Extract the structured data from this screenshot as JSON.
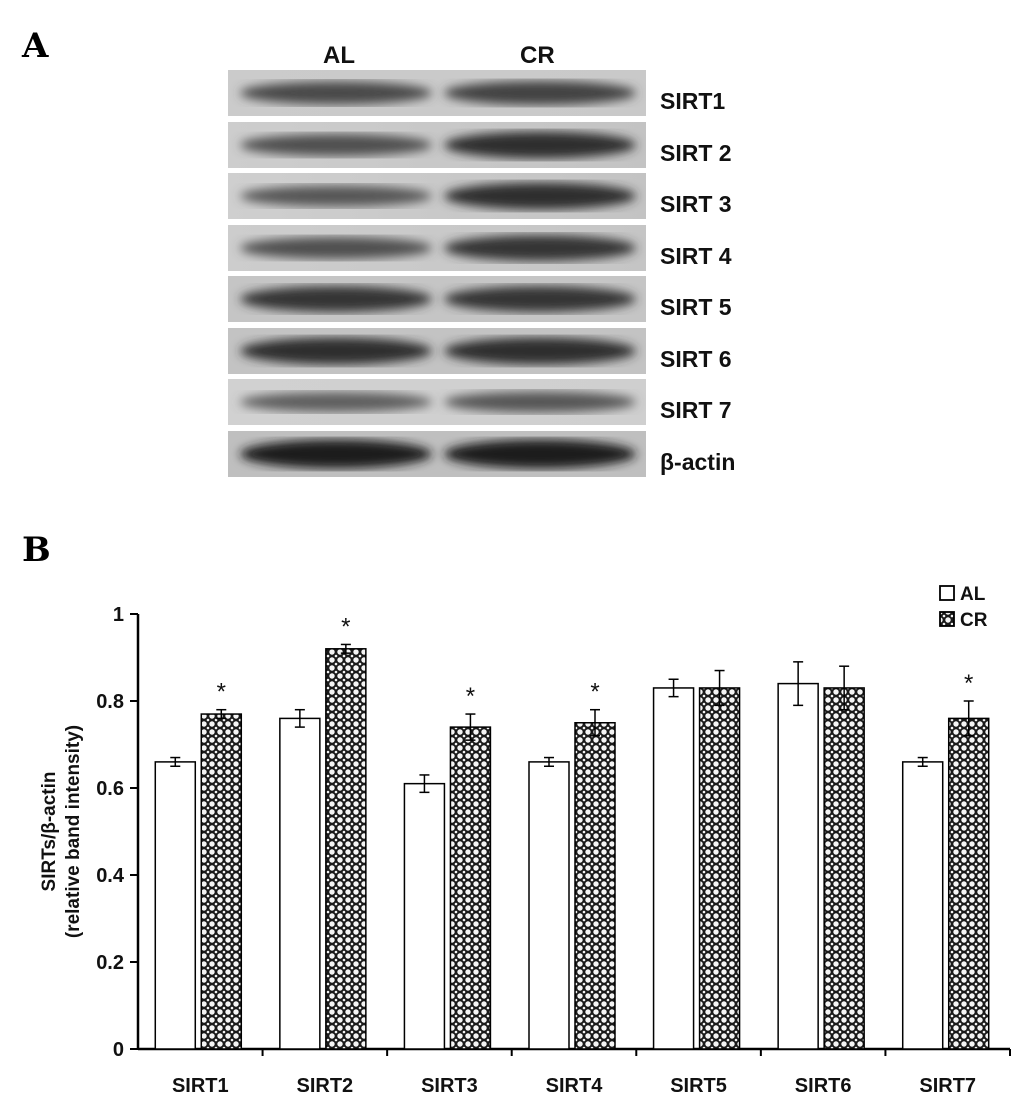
{
  "panels": {
    "a": "A",
    "b": "B"
  },
  "blot": {
    "lanes": [
      "AL",
      "CR"
    ],
    "bands": [
      {
        "label": "SIRT1",
        "al": 0.55,
        "cr": 0.6
      },
      {
        "label": "SIRT 2",
        "al": 0.5,
        "cr": 0.75
      },
      {
        "label": "SIRT 3",
        "al": 0.45,
        "cr": 0.75
      },
      {
        "label": "SIRT 4",
        "al": 0.5,
        "cr": 0.7
      },
      {
        "label": "SIRT 5",
        "al": 0.7,
        "cr": 0.7
      },
      {
        "label": "SIRT 6",
        "al": 0.75,
        "cr": 0.75
      },
      {
        "label": "SIRT 7",
        "al": 0.4,
        "cr": 0.45
      },
      {
        "label": "β-actin",
        "al": 0.85,
        "cr": 0.85
      }
    ]
  },
  "chart_data": {
    "type": "bar",
    "categories": [
      "SIRT1",
      "SIRT2",
      "SIRT3",
      "SIRT4",
      "SIRT5",
      "SIRT6",
      "SIRT7"
    ],
    "series": [
      {
        "name": "AL",
        "values": [
          0.66,
          0.76,
          0.61,
          0.66,
          0.83,
          0.84,
          0.66
        ],
        "errors": [
          0.01,
          0.02,
          0.02,
          0.01,
          0.02,
          0.05,
          0.01
        ]
      },
      {
        "name": "CR",
        "values": [
          0.77,
          0.92,
          0.74,
          0.75,
          0.83,
          0.83,
          0.76
        ],
        "errors": [
          0.01,
          0.01,
          0.03,
          0.03,
          0.04,
          0.05,
          0.04
        ]
      }
    ],
    "significance": [
      "*",
      "*",
      "*",
      "*",
      "",
      "",
      "*"
    ],
    "ylabel_line1": "SIRTs/β-actin",
    "ylabel_line2": "(relative band intensity)",
    "ylim": [
      0,
      1
    ],
    "yticks": [
      "0",
      "0.2",
      "0.4",
      "0.6",
      "0.8",
      "1"
    ],
    "ytick_values": [
      0,
      0.2,
      0.4,
      0.6,
      0.8,
      1
    ],
    "legend_position": "top-right",
    "grid": false
  }
}
